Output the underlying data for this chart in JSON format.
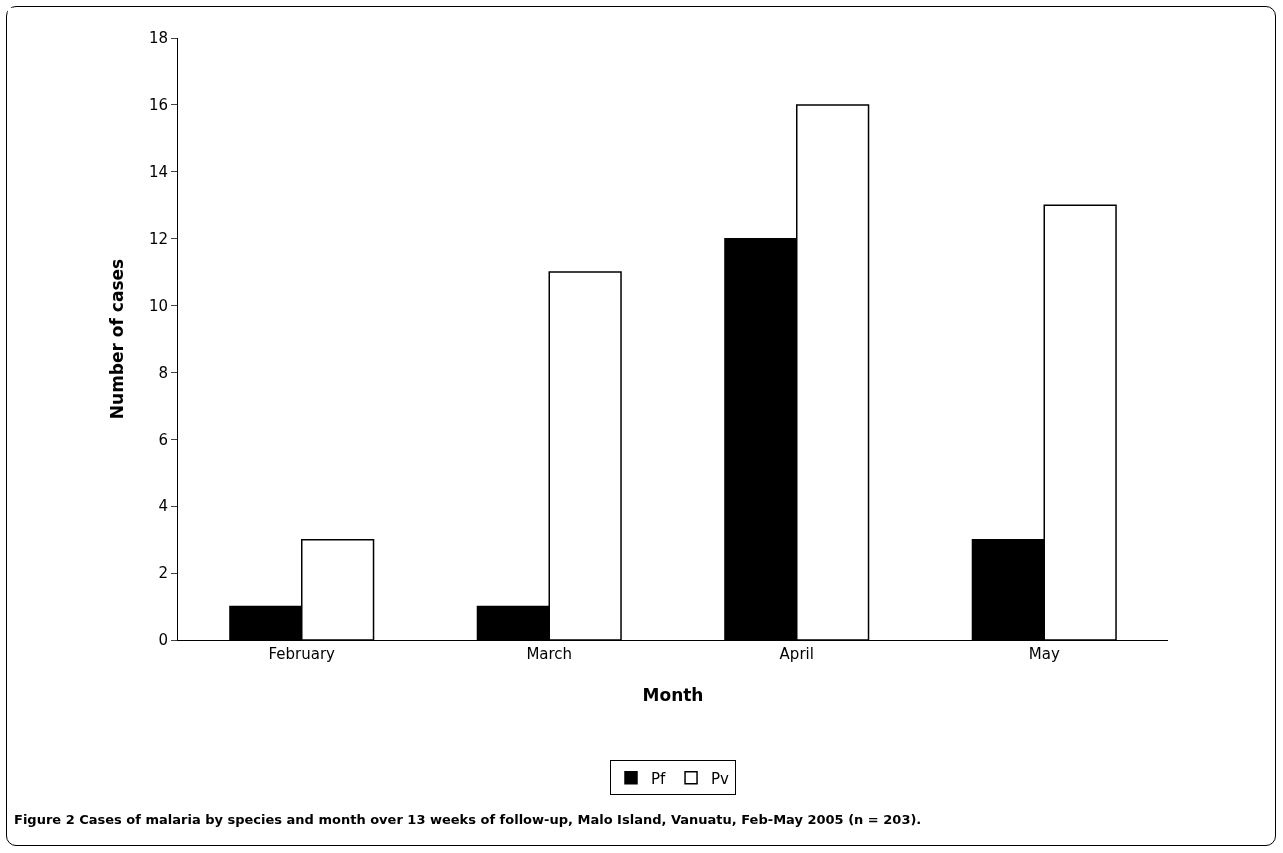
{
  "chart_data": {
    "type": "bar",
    "xlabel": "Month",
    "ylabel": "Number of cases",
    "categories": [
      "February",
      "March",
      "April",
      "May"
    ],
    "series": [
      {
        "name": "Pf",
        "color": "#000000",
        "values": [
          1,
          1,
          12,
          3
        ]
      },
      {
        "name": "Pv",
        "color": "#ffffff",
        "values": [
          3,
          11,
          16,
          13
        ]
      }
    ],
    "ylim": [
      0,
      18
    ],
    "yticks": [
      0,
      2,
      4,
      6,
      8,
      10,
      12,
      14,
      16,
      18
    ],
    "grid": false,
    "legend": "bottom",
    "annotations": [
      "Figure 2 Cases of malaria by species and month over 13 weeks of follow-up, Malo Island, Vanuatu, Feb-May 2005 (n = 203)."
    ]
  }
}
